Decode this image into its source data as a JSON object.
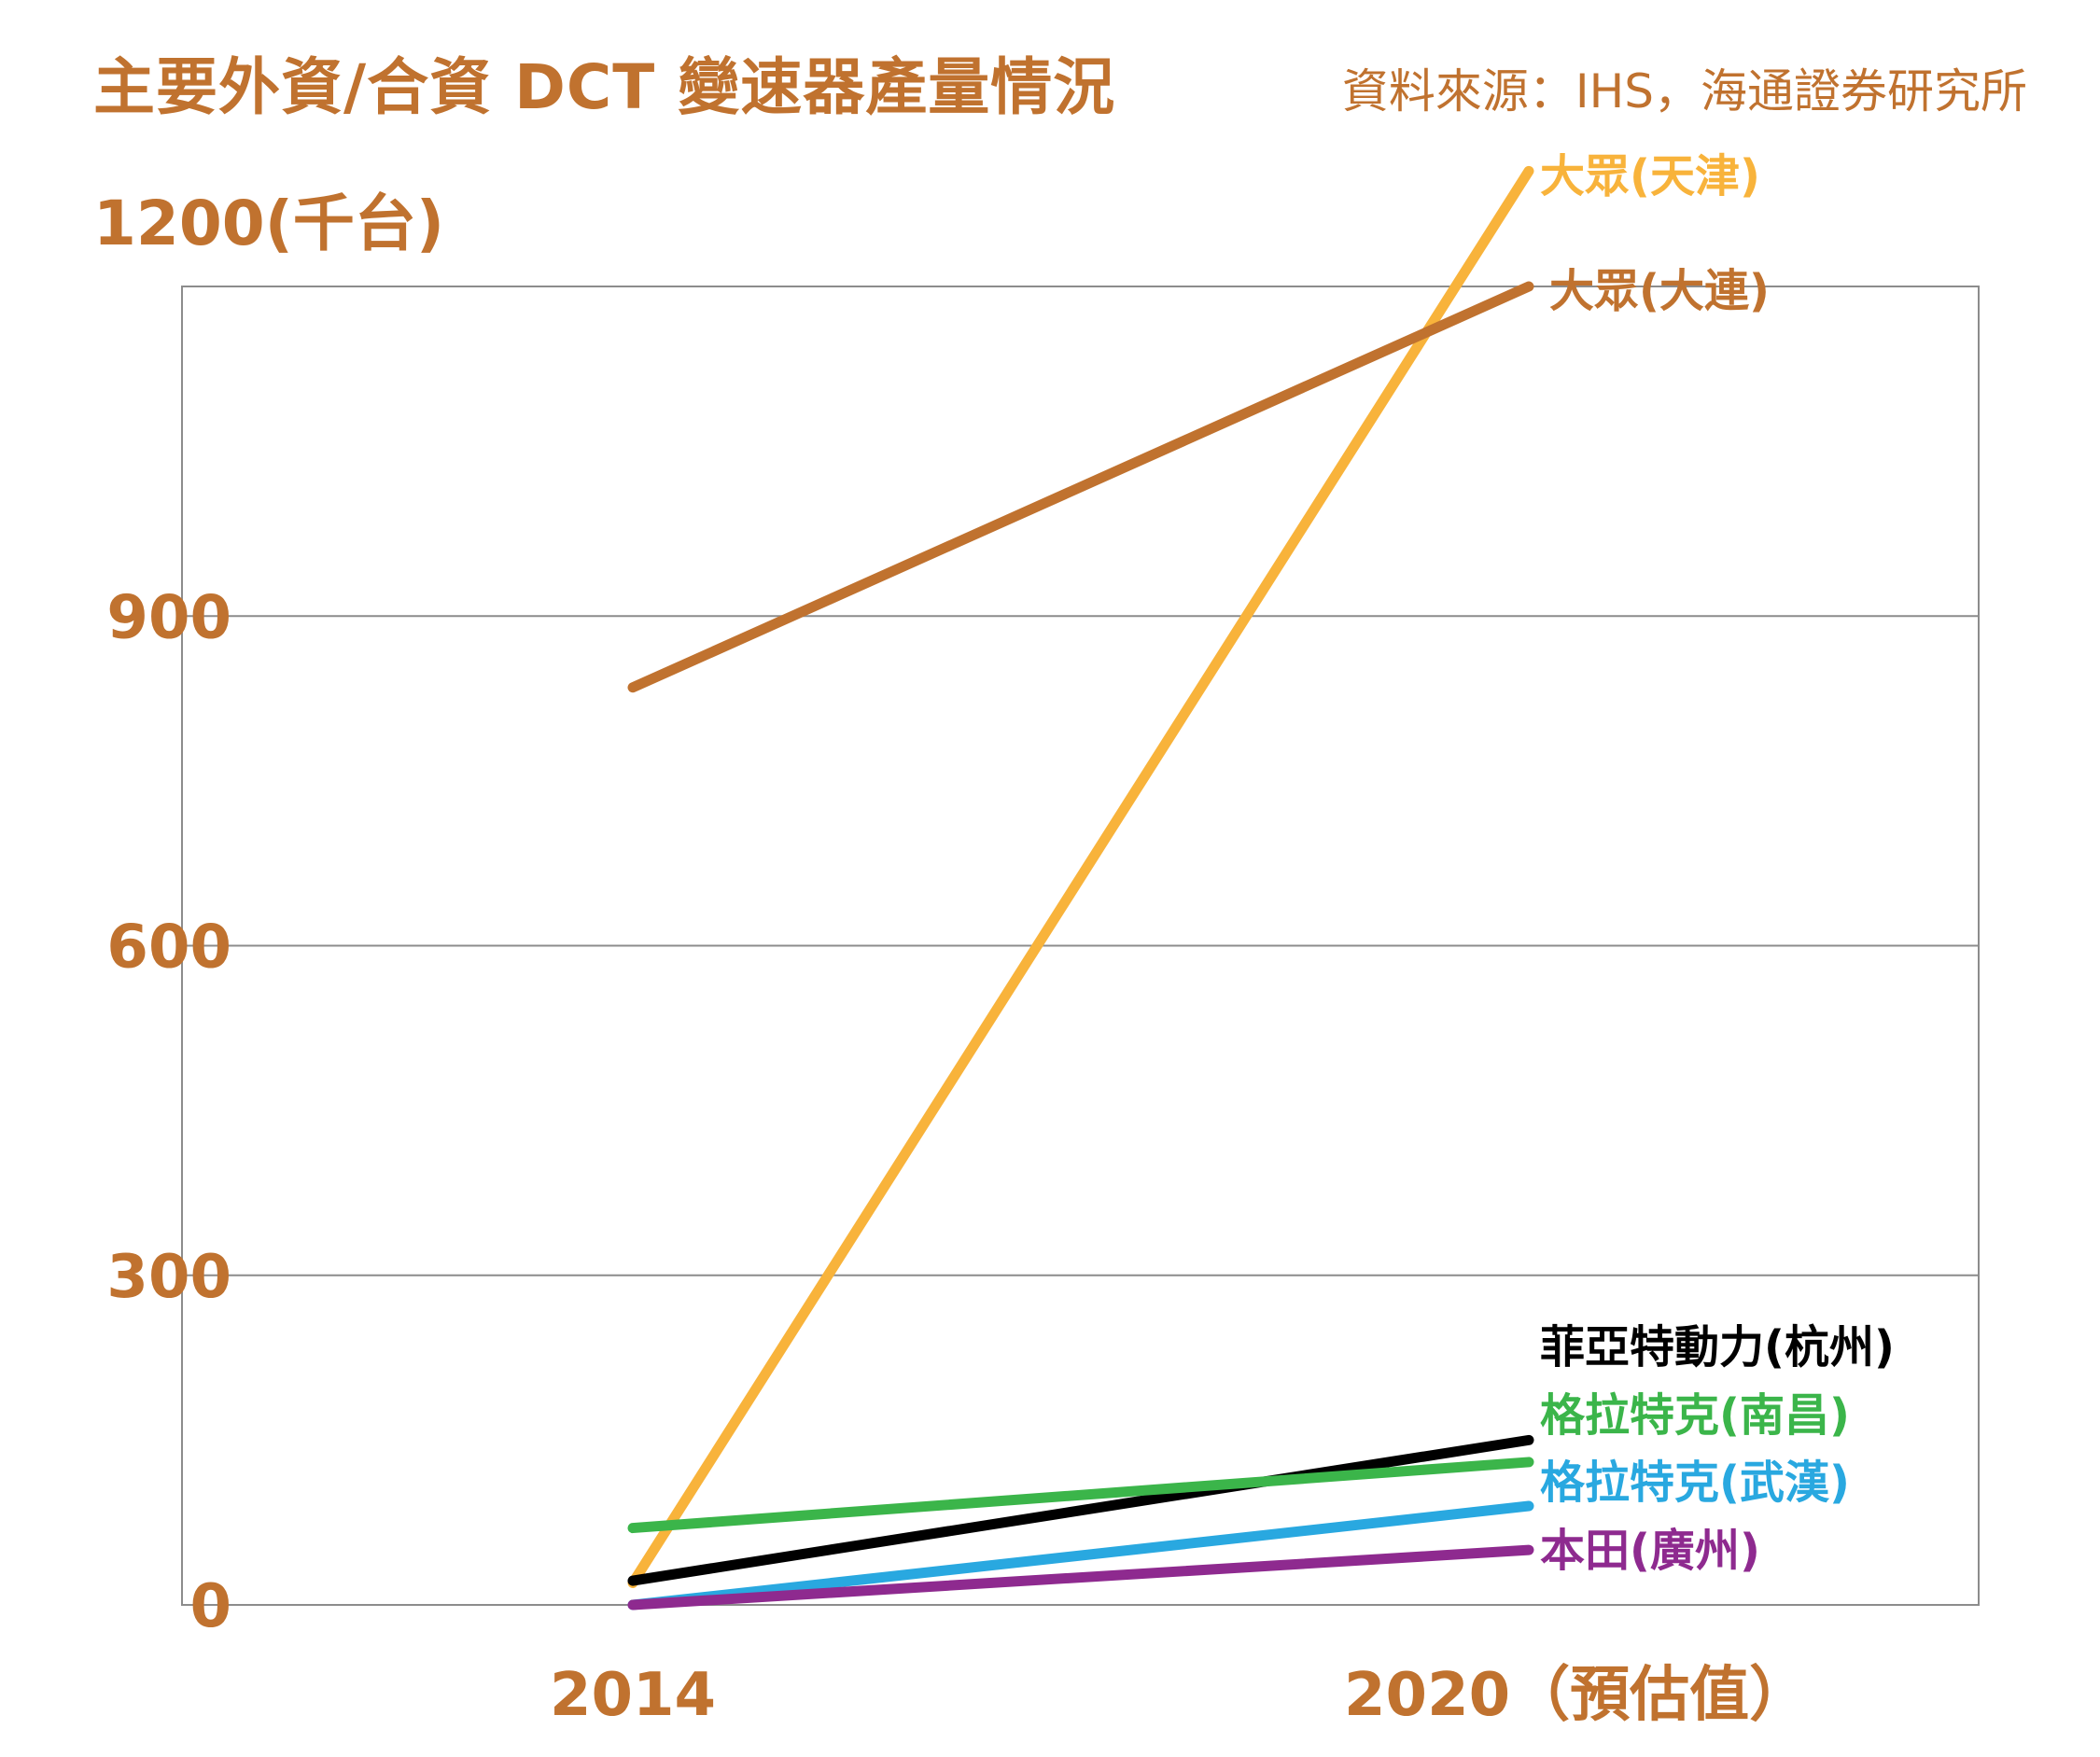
{
  "title": "主要外資/合資 DCT 變速器產量情況",
  "source": "資料來源：IHS，海通證券研究所",
  "colors": {
    "text": "#c0722f",
    "grid": "#8c8c8c"
  },
  "chart_data": {
    "type": "line",
    "title": "主要外資/合資 DCT 變速器產量情況",
    "ylabel": "(千台)",
    "x": [
      "2014",
      "2020（預估值）"
    ],
    "ylim": [
      0,
      1200
    ],
    "yticks": [
      0,
      300,
      600,
      900,
      1200
    ],
    "grid": true,
    "legend": "inline-right",
    "series": [
      {
        "name": "大眾(天津)",
        "color": "#f8b33b",
        "values": [
          20,
          1305
        ]
      },
      {
        "name": "大眾(大連)",
        "color": "#c0722f",
        "values": [
          835,
          1200
        ]
      },
      {
        "name": "菲亞特動力(杭州)",
        "color": "#000000",
        "values": [
          22,
          150
        ]
      },
      {
        "name": "格拉特克(南昌)",
        "color": "#3bb54a",
        "values": [
          70,
          130
        ]
      },
      {
        "name": "格拉特克(武漢)",
        "color": "#29a8e0",
        "values": [
          0,
          90
        ]
      },
      {
        "name": "本田(廣州)",
        "color": "#8e2a8f",
        "values": [
          0,
          50
        ]
      }
    ]
  }
}
